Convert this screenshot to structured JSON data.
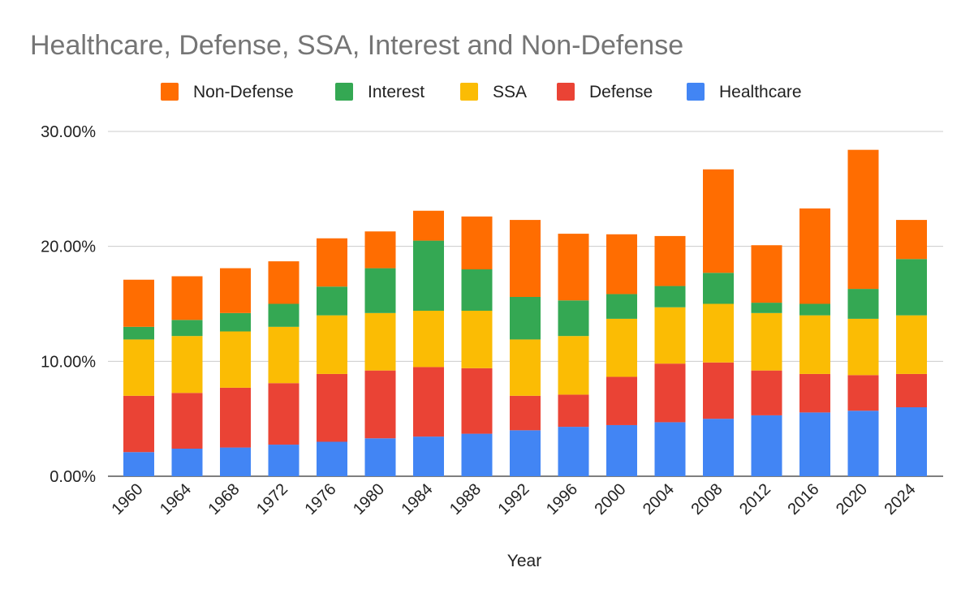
{
  "chart_data": {
    "type": "bar",
    "stacked": true,
    "title": "Healthcare, Defense, SSA, Interest and Non-Defense",
    "xlabel": "Year",
    "ylabel": "",
    "ylim": [
      0,
      30
    ],
    "yticks": [
      "0.00%",
      "10.00%",
      "20.00%",
      "30.00%"
    ],
    "ytick_values": [
      0,
      10,
      20,
      30
    ],
    "grid": true,
    "legend_position": "top",
    "categories": [
      "1960",
      "1964",
      "1968",
      "1972",
      "1976",
      "1980",
      "1984",
      "1988",
      "1992",
      "1996",
      "2000",
      "2004",
      "2008",
      "2012",
      "2016",
      "2020",
      "2024"
    ],
    "series": [
      {
        "name": "Healthcare",
        "color": "#4285F4",
        "values": [
          2.1,
          2.4,
          2.5,
          2.75,
          3.0,
          3.3,
          3.45,
          3.7,
          4.0,
          4.3,
          4.45,
          4.7,
          5.0,
          5.3,
          5.55,
          5.7,
          6.0
        ]
      },
      {
        "name": "Defense",
        "color": "#EA4335",
        "values": [
          4.9,
          4.85,
          5.2,
          5.35,
          5.9,
          5.9,
          6.05,
          5.7,
          3.0,
          2.8,
          4.2,
          5.1,
          4.9,
          3.9,
          3.35,
          3.1,
          2.9
        ]
      },
      {
        "name": "SSA",
        "color": "#FBBC04",
        "values": [
          4.9,
          4.95,
          4.9,
          4.9,
          5.1,
          5.0,
          4.9,
          5.0,
          4.9,
          5.1,
          5.05,
          4.9,
          5.1,
          5.0,
          5.1,
          4.9,
          5.1
        ]
      },
      {
        "name": "Interest",
        "color": "#34A853",
        "values": [
          1.1,
          1.4,
          1.6,
          2.0,
          2.5,
          3.9,
          6.1,
          3.6,
          3.7,
          3.1,
          2.15,
          1.85,
          2.7,
          0.9,
          1.0,
          2.6,
          4.9
        ]
      },
      {
        "name": "Non-Defense",
        "color": "#FF6D01",
        "values": [
          4.1,
          3.8,
          3.9,
          3.7,
          4.2,
          3.2,
          2.6,
          4.6,
          6.7,
          5.8,
          5.2,
          4.35,
          9.0,
          5.0,
          8.3,
          12.1,
          3.4
        ]
      }
    ],
    "legend_order": [
      "Non-Defense",
      "Interest",
      "SSA",
      "Defense",
      "Healthcare"
    ]
  }
}
